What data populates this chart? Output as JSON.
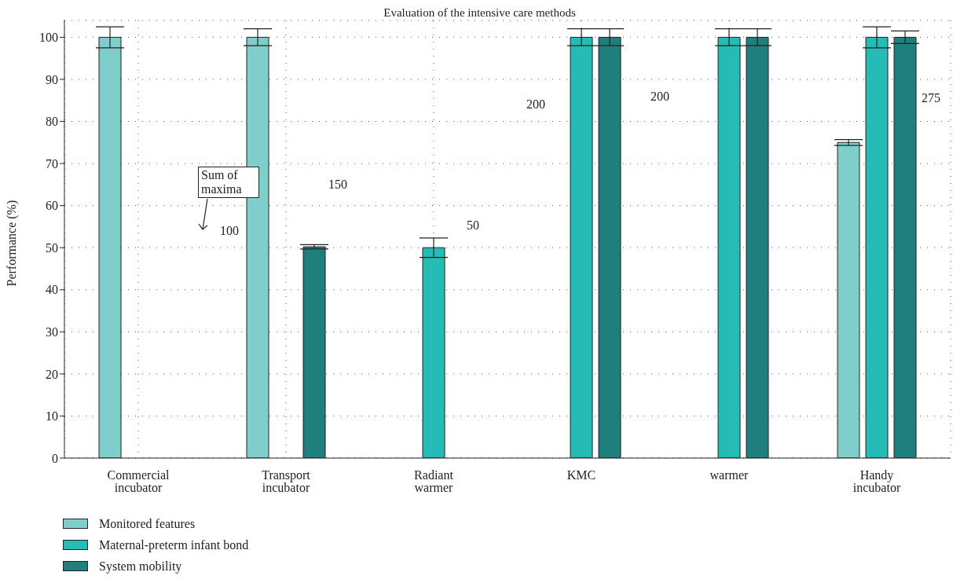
{
  "chart_data": {
    "type": "bar",
    "title": "Evaluation of the intensive care methods",
    "ylabel": "Performance (%)",
    "categories": [
      "Commercial incubator",
      "Transport incubator",
      "Radiant warmer",
      "KMC",
      "warmer",
      "Handy incubator"
    ],
    "series": [
      {
        "name": "Monitored features",
        "color": "#7fcecc",
        "values": [
          100,
          100,
          null,
          null,
          null,
          75
        ],
        "errors": [
          2.5,
          2,
          null,
          null,
          null,
          0.7
        ]
      },
      {
        "name": "Maternal-preterm infant bond",
        "color": "#26bbb5",
        "values": [
          null,
          null,
          50,
          100,
          100,
          100
        ],
        "errors": [
          null,
          null,
          2.3,
          2,
          2,
          2.5
        ]
      },
      {
        "name": "System mobility",
        "color": "#1f7f7c",
        "values": [
          null,
          50.2,
          null,
          100,
          100,
          100
        ],
        "errors": [
          null,
          0.5,
          null,
          2,
          2,
          1.5
        ]
      }
    ],
    "ylim": [
      0,
      104
    ],
    "yticks": [
      0,
      10,
      20,
      30,
      40,
      50,
      60,
      70,
      80,
      90,
      100
    ],
    "grid": true,
    "legend": "bottom left",
    "annotations": [
      "Sum of maxima",
      "100",
      "150",
      "50",
      "200",
      "200",
      "275"
    ]
  }
}
